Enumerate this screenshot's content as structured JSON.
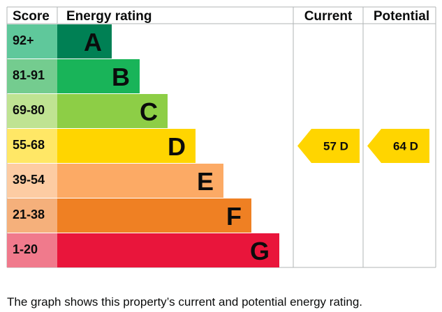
{
  "chart_data": {
    "type": "table",
    "headers": {
      "score": "Score",
      "rating": "Energy rating",
      "current": "Current",
      "potential": "Potential"
    },
    "bands": [
      {
        "letter": "A",
        "range": "92+",
        "color": "#008054",
        "score_bg": "#5fc89b"
      },
      {
        "letter": "B",
        "range": "81-91",
        "color": "#19b459",
        "score_bg": "#74cc8f"
      },
      {
        "letter": "C",
        "range": "69-80",
        "color": "#8dce46",
        "score_bg": "#bfe392"
      },
      {
        "letter": "D",
        "range": "55-68",
        "color": "#ffd500",
        "score_bg": "#ffe766"
      },
      {
        "letter": "E",
        "range": "39-54",
        "color": "#fcaa65",
        "score_bg": "#fdcca3"
      },
      {
        "letter": "F",
        "range": "21-38",
        "color": "#ef8023",
        "score_bg": "#f5b07b"
      },
      {
        "letter": "G",
        "range": "1-20",
        "color": "#e9153b",
        "score_bg": "#f07a8c"
      }
    ],
    "current": {
      "value": 57,
      "band": "D",
      "label": "57  D"
    },
    "potential": {
      "value": 64,
      "band": "D",
      "label": "64  D"
    }
  },
  "caption": "The graph shows this property’s current and potential energy rating."
}
